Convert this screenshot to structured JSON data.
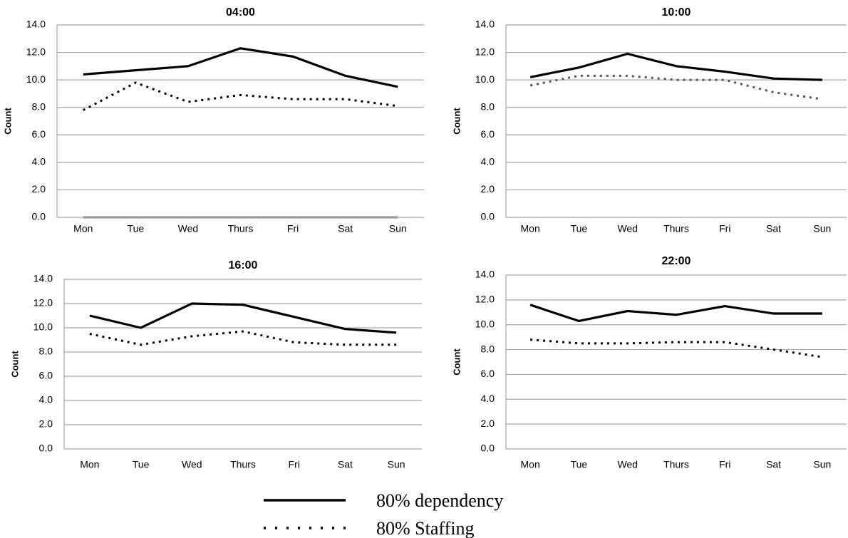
{
  "chart_data": [
    {
      "type": "line",
      "title": "04:00",
      "ylabel": "Count",
      "categories": [
        "Mon",
        "Tue",
        "Wed",
        "Thurs",
        "Fri",
        "Sat",
        "Sun"
      ],
      "series": [
        {
          "color": "#000000",
          "dash": "solid",
          "values": [
            10.4,
            10.7,
            11.0,
            12.3,
            11.7,
            10.3,
            9.5
          ]
        },
        {
          "color": "#000000",
          "dash": "dotted",
          "values": [
            7.8,
            9.8,
            8.4,
            8.9,
            8.6,
            8.6,
            8.1
          ]
        },
        {
          "color": "#999999",
          "dash": "solid",
          "values": [
            0,
            0,
            0,
            0,
            0,
            0,
            0
          ]
        }
      ],
      "ylim": [
        0,
        14
      ],
      "yticks": [
        {
          "value": 0,
          "label": "0.0"
        },
        {
          "value": 2,
          "label": "2.0"
        },
        {
          "value": 4,
          "label": "4.0"
        },
        {
          "value": 6,
          "label": "6.0"
        },
        {
          "value": 8,
          "label": "8.0"
        },
        {
          "value": 10,
          "label": "10.0"
        },
        {
          "value": 12,
          "label": "12.0"
        },
        {
          "value": 14,
          "label": "14.0"
        }
      ],
      "grid": true
    },
    {
      "type": "line",
      "title": "10:00",
      "ylabel": "Count",
      "categories": [
        "Mon",
        "Tue",
        "Wed",
        "Thurs",
        "Fri",
        "Sat",
        "Sun"
      ],
      "series": [
        {
          "color": "#000000",
          "dash": "solid",
          "values": [
            10.2,
            10.9,
            11.9,
            11.0,
            10.6,
            10.1,
            10.0
          ]
        },
        {
          "color": "#555555",
          "dash": "dotted",
          "values": [
            9.6,
            10.3,
            10.3,
            10.0,
            10.0,
            9.1,
            8.6
          ]
        }
      ],
      "ylim": [
        0,
        14
      ],
      "yticks": [
        {
          "value": 0,
          "label": "0.0"
        },
        {
          "value": 2,
          "label": "2.0"
        },
        {
          "value": 4,
          "label": "4.0"
        },
        {
          "value": 6,
          "label": "6.0"
        },
        {
          "value": 8,
          "label": "8.0"
        },
        {
          "value": 10,
          "label": "10.0"
        },
        {
          "value": 12,
          "label": "12.0"
        },
        {
          "value": 14,
          "label": "14.0"
        }
      ],
      "grid": true
    },
    {
      "type": "line",
      "title": "16:00",
      "ylabel": "Count",
      "categories": [
        "Mon",
        "Tue",
        "Wed",
        "Thurs",
        "Fri",
        "Sat",
        "Sun"
      ],
      "series": [
        {
          "color": "#000000",
          "dash": "solid",
          "values": [
            11.0,
            10.0,
            12.0,
            11.9,
            10.9,
            9.9,
            9.6
          ]
        },
        {
          "color": "#000000",
          "dash": "dotted",
          "values": [
            9.5,
            8.6,
            9.3,
            9.7,
            8.8,
            8.6,
            8.6
          ]
        }
      ],
      "ylim": [
        0,
        14
      ],
      "yticks": [
        {
          "value": 0,
          "label": "0.0"
        },
        {
          "value": 2,
          "label": "2.0"
        },
        {
          "value": 4,
          "label": "4.0"
        },
        {
          "value": 6,
          "label": "6.0"
        },
        {
          "value": 8,
          "label": "8.0"
        },
        {
          "value": 10,
          "label": "10.0"
        },
        {
          "value": 12,
          "label": "12.0"
        },
        {
          "value": 14,
          "label": "14.0"
        }
      ],
      "grid": true
    },
    {
      "type": "line",
      "title": "22:00",
      "ylabel": "Count",
      "categories": [
        "Mon",
        "Tue",
        "Wed",
        "Thurs",
        "Fri",
        "Sat",
        "Sun"
      ],
      "series": [
        {
          "color": "#000000",
          "dash": "solid",
          "values": [
            11.6,
            10.3,
            11.1,
            10.8,
            11.5,
            10.9,
            10.9
          ]
        },
        {
          "color": "#000000",
          "dash": "dotted",
          "values": [
            8.8,
            8.5,
            8.5,
            8.6,
            8.6,
            8.0,
            7.4
          ]
        }
      ],
      "ylim": [
        0,
        14
      ],
      "yticks": [
        {
          "value": 0,
          "label": "0.0"
        },
        {
          "value": 2,
          "label": "2.0"
        },
        {
          "value": 4,
          "label": "4.0"
        },
        {
          "value": 6,
          "label": "6.0"
        },
        {
          "value": 8,
          "label": "8.0"
        },
        {
          "value": 10,
          "label": "10.0"
        },
        {
          "value": 12,
          "label": "12.0"
        },
        {
          "value": 14,
          "label": "14.0"
        }
      ],
      "grid": true
    }
  ],
  "legend": [
    {
      "name": "80% dependency",
      "color": "#000000",
      "dash": "solid"
    },
    {
      "name": "80% Staffing",
      "color": "#000000",
      "dash": "dotted"
    }
  ]
}
